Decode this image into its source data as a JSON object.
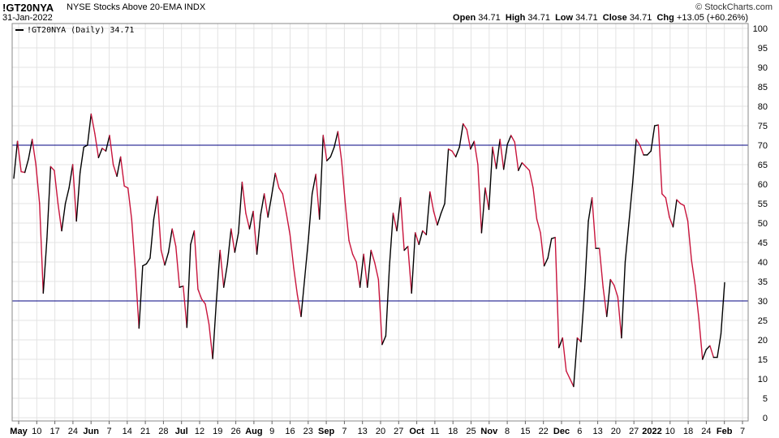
{
  "header": {
    "symbol": "!GT20NYA",
    "description": "NYSE Stocks Above 20-EMA",
    "exchange": "INDX",
    "date": "31-Jan-2022",
    "credit": "© StockCharts.com",
    "open_label": "Open",
    "open": "34.71",
    "high_label": "High",
    "high": "34.71",
    "low_label": "Low",
    "low": "34.71",
    "close_label": "Close",
    "close": "34.71",
    "chg_label": "Chg",
    "chg": "+13.05 (+60.26%)"
  },
  "legend": {
    "text": "!GT20NYA (Daily) 34.71"
  },
  "colors": {
    "up": "#000000",
    "down": "#c8143c",
    "reference_lines": "#000080",
    "grid": "#e3e3e3",
    "frame": "#888888"
  },
  "chart_data": {
    "type": "line",
    "series": [
      {
        "name": "!GT20NYA (Daily)",
        "values": [
          61.5,
          71,
          63.2,
          63,
          66.5,
          71.5,
          65,
          55,
          32,
          46,
          64.5,
          63.5,
          55,
          48,
          55,
          59,
          65,
          50.5,
          63,
          69.5,
          70,
          78,
          73,
          66.8,
          69.2,
          68.5,
          72.5,
          65,
          62,
          67,
          59.5,
          59,
          51,
          38,
          23,
          39,
          39.5,
          41,
          51,
          56.8,
          43,
          39.2,
          42.5,
          48.5,
          44,
          33.5,
          33.8,
          23.2,
          44.5,
          48,
          33,
          30.5,
          29.2,
          24,
          15.2,
          30,
          43,
          33.5,
          39.5,
          48.5,
          42.5,
          47.5,
          60.5,
          52.5,
          48.5,
          53,
          42,
          52,
          57.5,
          51.5,
          57,
          62.8,
          59,
          57.5,
          52.5,
          47,
          38.5,
          31.5,
          26,
          36,
          46,
          57.5,
          62.5,
          51,
          72.5,
          66,
          67,
          69.5,
          73.5,
          66,
          55,
          45.5,
          42,
          40,
          33.5,
          42,
          33.5,
          43,
          39.8,
          35.5,
          18.8,
          21,
          39,
          52.5,
          48,
          56.5,
          43,
          44,
          32,
          47.5,
          44.5,
          48,
          47,
          58,
          53,
          49.5,
          52.5,
          55,
          69,
          68.5,
          67,
          69.5,
          75.5,
          74,
          69,
          71,
          65,
          47.5,
          59,
          53.5,
          69.5,
          64,
          71.5,
          63.8,
          70.2,
          72.5,
          70.8,
          63.5,
          65.5,
          64.5,
          63.5,
          59,
          51,
          47.5,
          39,
          41,
          46,
          46.3,
          18,
          20.5,
          12,
          10,
          8,
          20.5,
          19.5,
          33,
          50.5,
          56.5,
          43.5,
          43.5,
          33.5,
          26,
          35.5,
          34,
          31,
          20.5,
          40,
          50,
          60,
          71.5,
          70,
          67.5,
          67.5,
          68.5,
          75,
          75.2,
          57.5,
          56.5,
          51.5,
          49,
          56,
          55,
          54.5,
          50.5,
          40.5,
          34,
          25.5,
          15,
          17.5,
          18.5,
          15.5,
          15.5,
          21.5,
          34.71
        ]
      }
    ],
    "x_ticks": [
      "May",
      "10",
      "17",
      "24",
      "Jun",
      "7",
      "14",
      "21",
      "28",
      "Jul",
      "12",
      "19",
      "26",
      "Aug",
      "9",
      "16",
      "23",
      "Sep",
      "7",
      "13",
      "20",
      "27",
      "Oct",
      "11",
      "18",
      "25",
      "Nov",
      "8",
      "15",
      "22",
      "Dec",
      "6",
      "13",
      "20",
      "27",
      "2022",
      "10",
      "18",
      "24",
      "Feb",
      "7"
    ],
    "x_ticks_bold": [
      "May",
      "Jun",
      "Jul",
      "Aug",
      "Sep",
      "Oct",
      "Nov",
      "Dec",
      "2022",
      "Feb"
    ],
    "y_ticks": [
      0,
      5,
      10,
      15,
      20,
      25,
      30,
      35,
      40,
      45,
      50,
      55,
      60,
      65,
      70,
      75,
      80,
      85,
      90,
      95,
      100
    ],
    "ylim": [
      0,
      100
    ],
    "reference_lines": [
      30,
      70
    ],
    "grid": true,
    "legend_position": "top-left"
  }
}
